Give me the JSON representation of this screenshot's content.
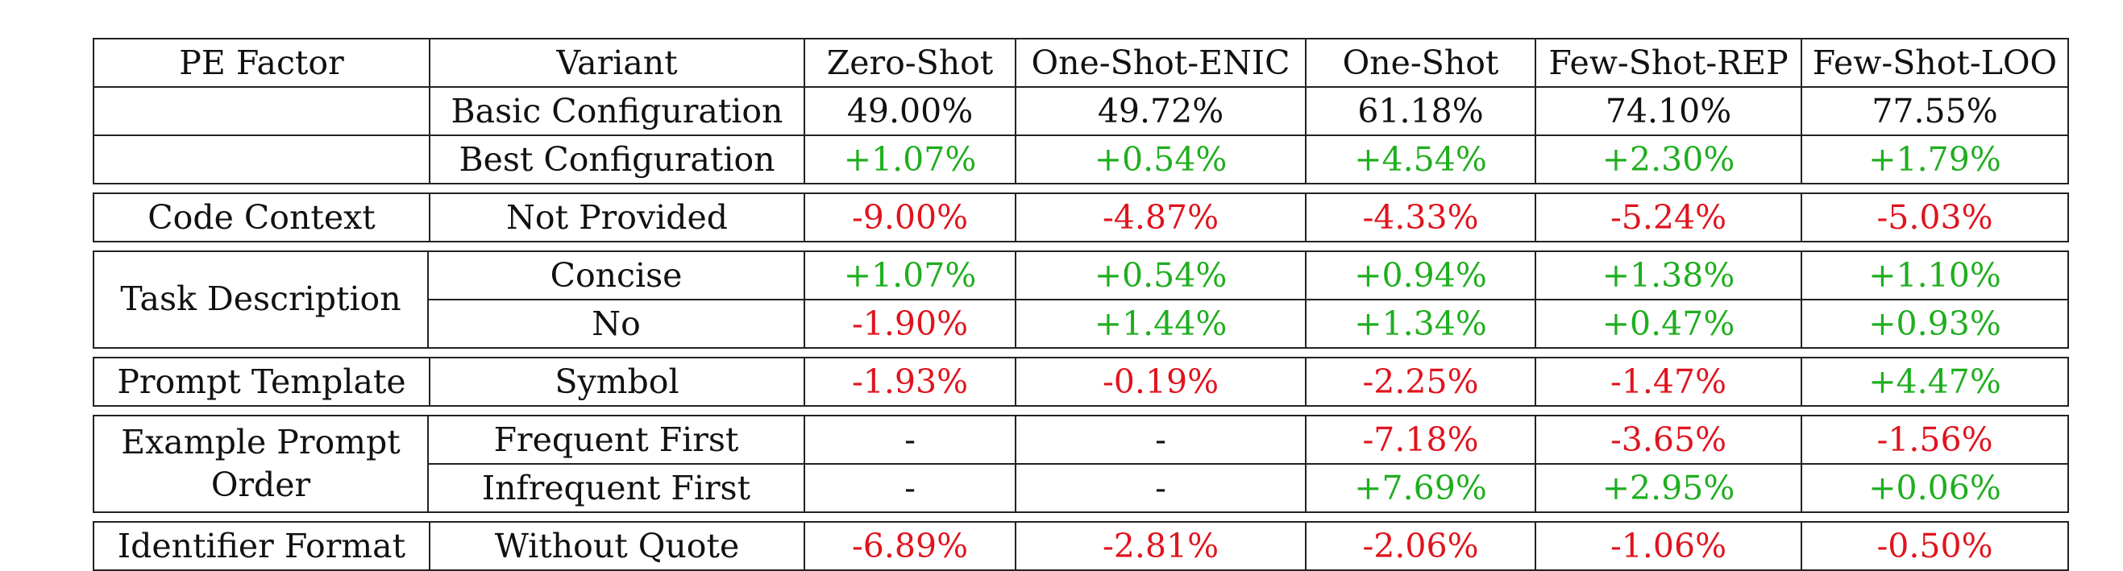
{
  "header": [
    "PE Factor",
    "Variant",
    "Zero-Shot",
    "One-Shot-ENIC",
    "One-Shot",
    "Few-Shot-REP",
    "Few-Shot-LOO"
  ],
  "groups": [
    {
      "factor": "",
      "rows": [
        {
          "variant": "Basic Configuration",
          "values": [
            "49.00%",
            "49.72%",
            "61.18%",
            "74.10%",
            "77.55%"
          ],
          "tone": [
            "neu",
            "neu",
            "neu",
            "neu",
            "neu"
          ]
        },
        {
          "variant": "Best Configuration",
          "values": [
            "+1.07%",
            "+0.54%",
            "+4.54%",
            "+2.30%",
            "+1.79%"
          ],
          "tone": [
            "pos",
            "pos",
            "pos",
            "pos",
            "pos"
          ]
        }
      ]
    },
    {
      "factor": "Code Context",
      "rows": [
        {
          "variant": "Not Provided",
          "values": [
            "-9.00%",
            "-4.87%",
            "-4.33%",
            "-5.24%",
            "-5.03%"
          ],
          "tone": [
            "neg",
            "neg",
            "neg",
            "neg",
            "neg"
          ]
        }
      ]
    },
    {
      "factor": "Task Description",
      "rows": [
        {
          "variant": "Concise",
          "values": [
            "+1.07%",
            "+0.54%",
            "+0.94%",
            "+1.38%",
            "+1.10%"
          ],
          "tone": [
            "pos",
            "pos",
            "pos",
            "pos",
            "pos"
          ]
        },
        {
          "variant": "No",
          "values": [
            "-1.90%",
            "+1.44%",
            "+1.34%",
            "+0.47%",
            "+0.93%"
          ],
          "tone": [
            "neg",
            "pos",
            "pos",
            "pos",
            "pos"
          ]
        }
      ]
    },
    {
      "factor": "Prompt Template",
      "rows": [
        {
          "variant": "Symbol",
          "values": [
            "-1.93%",
            "-0.19%",
            "-2.25%",
            "-1.47%",
            "+4.47%"
          ],
          "tone": [
            "neg",
            "neg",
            "neg",
            "neg",
            "pos"
          ]
        }
      ]
    },
    {
      "factor": "Example Prompt Order",
      "rows": [
        {
          "variant": "Frequent First",
          "values": [
            "-",
            "-",
            "-7.18%",
            "-3.65%",
            "-1.56%"
          ],
          "tone": [
            "neu",
            "neu",
            "neg",
            "neg",
            "neg"
          ]
        },
        {
          "variant": "Infrequent First",
          "values": [
            "-",
            "-",
            "+7.69%",
            "+2.95%",
            "+0.06%"
          ],
          "tone": [
            "neu",
            "neu",
            "pos",
            "pos",
            "pos"
          ]
        }
      ]
    },
    {
      "factor": "Identifier Format",
      "rows": [
        {
          "variant": "Without Quote",
          "values": [
            "-6.89%",
            "-2.81%",
            "-2.06%",
            "-1.06%",
            "-0.50%"
          ],
          "tone": [
            "neg",
            "neg",
            "neg",
            "neg",
            "neg"
          ]
        }
      ]
    }
  ]
}
